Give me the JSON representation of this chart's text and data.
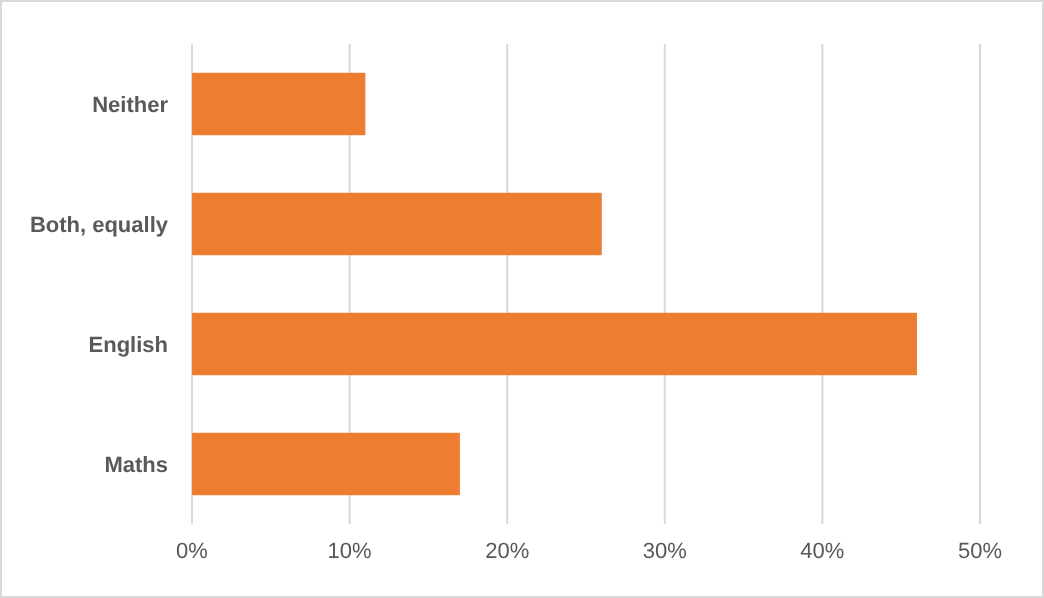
{
  "chart_data": {
    "type": "bar",
    "orientation": "horizontal",
    "categories": [
      "Neither",
      "Both, equally",
      "English",
      "Maths"
    ],
    "values": [
      11,
      26,
      46,
      17
    ],
    "color": "#ed7d31",
    "xlim": [
      0,
      50
    ],
    "xticks": [
      {
        "value": 0,
        "label": "0%"
      },
      {
        "value": 10,
        "label": "10%"
      },
      {
        "value": 20,
        "label": "20%"
      },
      {
        "value": 30,
        "label": "30%"
      },
      {
        "value": 40,
        "label": "40%"
      },
      {
        "value": 50,
        "label": "50%"
      }
    ],
    "grid": "x"
  }
}
